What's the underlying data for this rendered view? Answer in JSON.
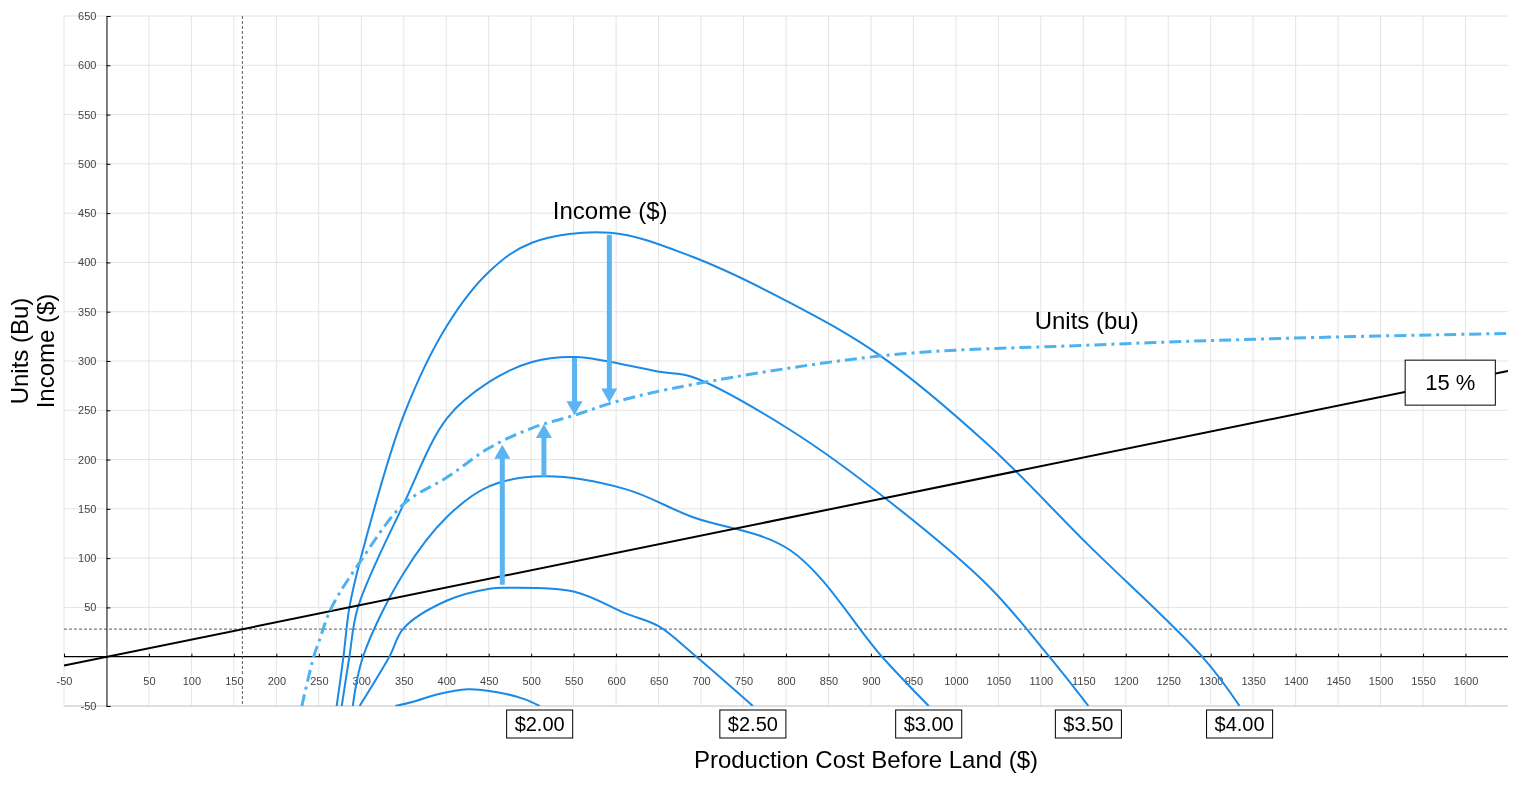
{
  "chart_data": {
    "type": "line",
    "xlabel": "Production Cost Before Land ($)",
    "ylabel": "Units (Bu)\nIncome ($)",
    "xlim": [
      -50,
      1650
    ],
    "ylim": [
      -50,
      650
    ],
    "xticks": [
      -50,
      50,
      100,
      150,
      200,
      250,
      300,
      350,
      400,
      450,
      500,
      550,
      600,
      650,
      700,
      750,
      800,
      850,
      900,
      950,
      1000,
      1050,
      1100,
      1150,
      1200,
      1250,
      1300,
      1350,
      1400,
      1450,
      1500,
      1550,
      1600
    ],
    "yticks": [
      -50,
      50,
      100,
      150,
      200,
      250,
      300,
      350,
      400,
      450,
      500,
      550,
      600,
      650
    ],
    "grid": true,
    "series": [
      {
        "name": "$2.00",
        "color": "#1a8ae6",
        "x": [
          340,
          360,
          390,
          425,
          460,
          492,
          510
        ],
        "values": [
          -50,
          -46,
          -38,
          -33,
          -36,
          -43,
          -50
        ]
      },
      {
        "name": "$2.50",
        "color": "#1a8ae6",
        "x": [
          298,
          333,
          350,
          401,
          451,
          470,
          551,
          611,
          650,
          689,
          761
        ],
        "values": [
          -50,
          0,
          29,
          57,
          69,
          70,
          66,
          44,
          31,
          4,
          -50
        ]
      },
      {
        "name": "$3.00",
        "color": "#1a8ae6",
        "x": [
          290,
          302,
          350,
          401,
          451,
          515,
          611,
          689,
          805,
          913,
          968
        ],
        "values": [
          -50,
          0,
          85,
          142,
          173,
          183,
          170,
          142,
          108,
          0,
          -50
        ]
      },
      {
        "name": "$3.50",
        "color": "#1a8ae6",
        "x": [
          277,
          286,
          296,
          350,
          401,
          451,
          501,
          553,
          651,
          689,
          805,
          921,
          1038,
          1110,
          1156
        ],
        "values": [
          -50,
          0,
          50,
          155,
          242,
          279,
          299,
          304,
          289,
          284,
          230,
          158,
          72,
          0,
          -50
        ]
      },
      {
        "name": "$4.00",
        "color": "#1a8ae6",
        "x": [
          271,
          279,
          286,
          300,
          350,
          401,
          451,
          501,
          593,
          689,
          805,
          910,
          1038,
          1154,
          1290,
          1334
        ],
        "values": [
          -50,
          0,
          50,
          102,
          245,
          336,
          391,
          420,
          430,
          406,
          359,
          306,
          215,
          115,
          0,
          -50
        ]
      },
      {
        "name": "15 %",
        "color": "#000000",
        "x": [
          -50,
          1650
        ],
        "values": [
          -9,
          290
        ]
      },
      {
        "color": "#4db3f0",
        "line_style": "dashed",
        "x": [
          230,
          244,
          250,
          265,
          300,
          350,
          401,
          451,
          501,
          551,
          601,
          689,
          921,
          1154,
          1386,
          1650
        ],
        "values": [
          -50,
          0,
          15,
          50,
          98,
          155,
          182,
          212,
          232,
          245,
          259,
          276,
          306,
          316,
          323,
          328
        ]
      }
    ],
    "ref_lines": [
      {
        "axis": "y",
        "value": 0,
        "color": "#000000",
        "line_style": "solid"
      },
      {
        "axis": "x",
        "value": 160,
        "color": "#333333",
        "line_style": "dashed"
      },
      {
        "axis": "y",
        "value": 28,
        "color": "#333333",
        "line_style": "dashed"
      }
    ],
    "annotations": [
      "Income ($)",
      "Units (bu)"
    ]
  }
}
